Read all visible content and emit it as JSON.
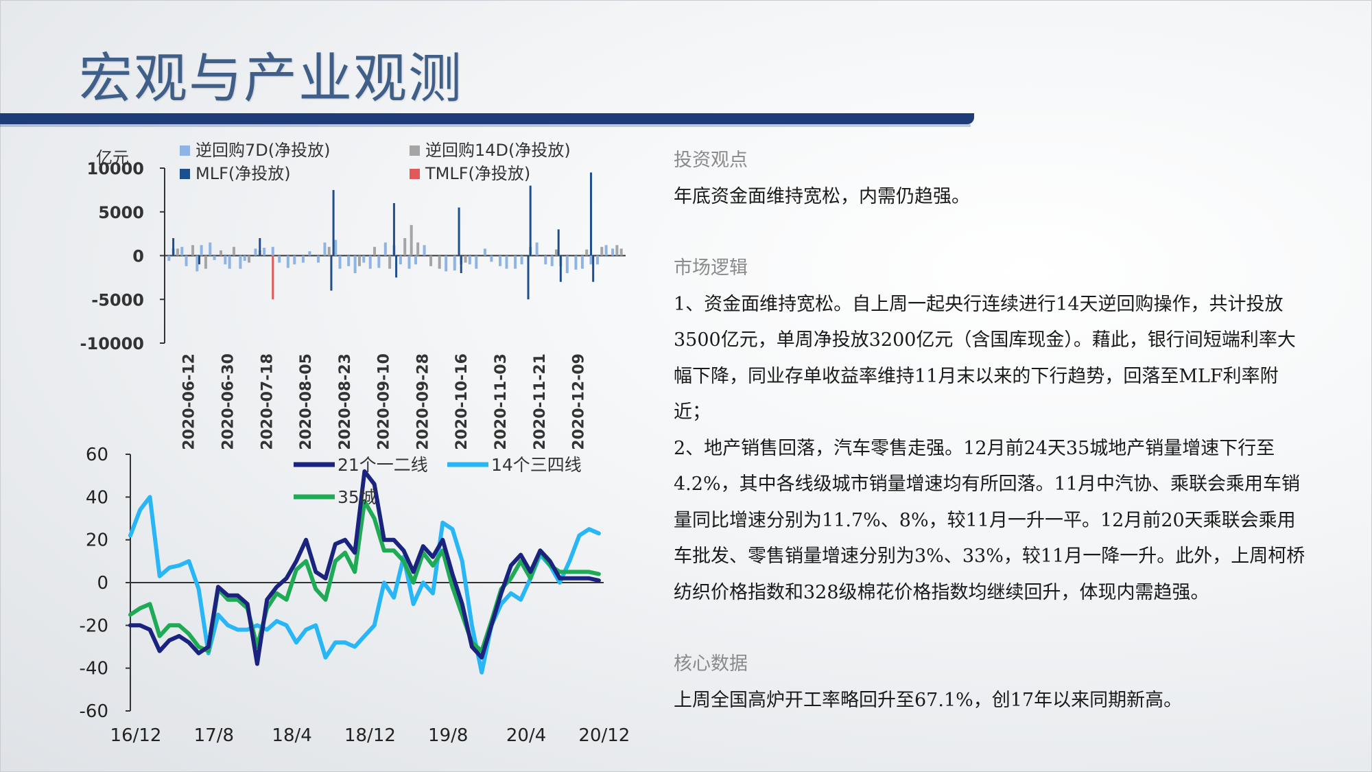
{
  "title": "宏观与产业观测",
  "colors": {
    "title": "#3f5f88",
    "title_bar": "#1e3c78",
    "rr7": "#8fb4e3",
    "rr14": "#a5a5a5",
    "mlf": "#1f4e8c",
    "tmlf": "#e05a5a",
    "c21": "#1a237e",
    "c14": "#29b6f6",
    "c35": "#1faa55"
  },
  "right": {
    "s1_title": "投资观点",
    "s1_text": "年底资金面维持宽松，内需仍趋强。",
    "s2_title": "市场逻辑",
    "s2_p1": "1、资金面维持宽松。自上周一起央行连续进行14天逆回购操作，共计投放3500亿元，单周净投放3200亿元（含国库现金）。藉此，银行间短端利率大幅下降，同业存单收益率维持11月末以来的下行趋势，回落至MLF利率附近；",
    "s2_p2": "2、地产销售回落，汽车零售走强。12月前24天35城地产销量增速下行至4.2%，其中各线级城市销量增速均有所回落。11月中汽协、乘联会乘用车销量同比增速分别为11.7%、8%，较11月一升一平。12月前20天乘联会乘用车批发、零售销量增速分别为3%、33%，较11月一降一升。此外，上周柯桥纺织价格指数和328级棉花价格指数均继续回升，体现内需趋强。",
    "s3_title": "核心数据",
    "s3_text": "上周全国高炉开工率略回升至67.1%，创17年以来同期新高。"
  },
  "chart_data": [
    {
      "type": "bar",
      "ylabel": "亿元",
      "ylim": [
        -10000,
        10000
      ],
      "yticks": [
        10000,
        5000,
        0,
        -5000,
        -10000
      ],
      "x_start": "2020-06-01",
      "x_end": "2020-12-31",
      "xtick_labels": [
        "2020-06-12",
        "2020-06-30",
        "2020-07-18",
        "2020-08-05",
        "2020-08-23",
        "2020-09-10",
        "2020-09-28",
        "2020-10-16",
        "2020-11-03",
        "2020-11-21",
        "2020-12-09"
      ],
      "legend": [
        "逆回购7D(净投放)",
        "逆回购14D(净投放)",
        "MLF(净投放)",
        "TMLF(净投放)"
      ],
      "series": [
        {
          "name": "逆回购7D(净投放)",
          "x": [
            "2020-06-03",
            "2020-06-05",
            "2020-06-09",
            "2020-06-11",
            "2020-06-16",
            "2020-06-18",
            "2020-06-22",
            "2020-06-24",
            "2020-06-29",
            "2020-07-01",
            "2020-07-06",
            "2020-07-08",
            "2020-07-13",
            "2020-07-17",
            "2020-07-21",
            "2020-07-24",
            "2020-07-28",
            "2020-07-31",
            "2020-08-04",
            "2020-08-07",
            "2020-08-11",
            "2020-08-14",
            "2020-08-19",
            "2020-08-21",
            "2020-08-25",
            "2020-08-28",
            "2020-09-01",
            "2020-09-04",
            "2020-09-08",
            "2020-09-11",
            "2020-09-15",
            "2020-09-18",
            "2020-09-22",
            "2020-09-25",
            "2020-09-29",
            "2020-10-09",
            "2020-10-13",
            "2020-10-16",
            "2020-10-20",
            "2020-10-23",
            "2020-10-27",
            "2020-10-30",
            "2020-11-03",
            "2020-11-06",
            "2020-11-10",
            "2020-11-13",
            "2020-11-17",
            "2020-11-20",
            "2020-11-24",
            "2020-11-27",
            "2020-12-01",
            "2020-12-04",
            "2020-12-08",
            "2020-12-11",
            "2020-12-15",
            "2020-12-18",
            "2020-12-22",
            "2020-12-25"
          ],
          "values": [
            -600,
            800,
            1000,
            -1200,
            -1800,
            1200,
            1500,
            -500,
            -1000,
            -1500,
            -1500,
            -600,
            800,
            900,
            1000,
            -800,
            -1400,
            -1000,
            -800,
            500,
            -800,
            1500,
            1800,
            -1500,
            -1200,
            -2000,
            -800,
            -1500,
            -1400,
            1500,
            1200,
            -1000,
            -1500,
            -1000,
            1200,
            -1800,
            -1700,
            -1000,
            -1000,
            -1500,
            800,
            -700,
            -1200,
            -1500,
            -1500,
            -1000,
            1000,
            1500,
            -1000,
            -1200,
            -1200,
            -2000,
            -1600,
            -1500,
            -1000,
            -1000,
            1200,
            800
          ]
        },
        {
          "name": "逆回购14D(净投放)",
          "x": [
            "2020-06-07",
            "2020-06-14",
            "2020-06-20",
            "2020-06-27",
            "2020-07-03",
            "2020-07-10",
            "2020-07-15",
            "2020-08-16",
            "2020-08-30",
            "2020-09-06",
            "2020-09-13",
            "2020-09-20",
            "2020-09-23",
            "2020-09-26",
            "2020-10-02",
            "2020-10-06",
            "2020-10-18",
            "2020-11-29",
            "2020-12-13",
            "2020-12-20",
            "2020-12-27",
            "2020-12-29"
          ],
          "values": [
            800,
            1200,
            -1500,
            600,
            1000,
            -800,
            600,
            1000,
            -1200,
            1000,
            -1500,
            2000,
            3500,
            1500,
            -1200,
            -1500,
            -800,
            700,
            700,
            1000,
            1200,
            800
          ]
        },
        {
          "name": "MLF(净投放)",
          "x": [
            "2020-06-05",
            "2020-06-17",
            "2020-07-15",
            "2020-08-17",
            "2020-08-18",
            "2020-09-15",
            "2020-09-16",
            "2020-10-15",
            "2020-10-16",
            "2020-11-16",
            "2020-11-17",
            "2020-11-30",
            "2020-12-01",
            "2020-12-15",
            "2020-12-16"
          ],
          "values": [
            2000,
            -1000,
            2000,
            -4000,
            7500,
            6000,
            -2500,
            5500,
            -2000,
            -5000,
            8000,
            3000,
            -3000,
            9500,
            -3000
          ]
        },
        {
          "name": "TMLF(净投放)",
          "x": [
            "2020-07-21"
          ],
          "values": [
            -5000
          ]
        }
      ]
    },
    {
      "type": "line",
      "ylim": [
        -60,
        60
      ],
      "yticks": [
        60,
        40,
        20,
        0,
        -20,
        -40,
        -60
      ],
      "x_start": 0,
      "x_end": 48.5,
      "xtick_labels": [
        "16/12",
        "17/8",
        "18/4",
        "18/12",
        "19/8",
        "20/4",
        "20/12"
      ],
      "xtick_positions": [
        0,
        8,
        16,
        24,
        32,
        40,
        48
      ],
      "legend": [
        "21个一二线",
        "14个三四线",
        "35城"
      ],
      "series": [
        {
          "name": "21个一二线",
          "x": [
            0,
            1,
            2,
            3,
            4,
            5,
            6,
            7,
            8,
            9,
            10,
            11,
            12,
            13,
            14,
            15,
            16,
            17,
            18,
            19,
            20,
            21,
            22,
            23,
            24,
            25,
            26,
            27,
            28,
            29,
            30,
            31,
            32,
            33,
            34,
            35,
            36,
            37,
            38,
            39,
            40,
            41,
            42,
            43,
            44,
            45,
            46,
            47,
            48
          ],
          "values": [
            -20,
            -20,
            -22,
            -32,
            -27,
            -25,
            -28,
            -33,
            -30,
            -2,
            -6,
            -6,
            -10,
            -38,
            -8,
            -2,
            2,
            10,
            20,
            5,
            2,
            18,
            20,
            14,
            52,
            46,
            20,
            20,
            15,
            5,
            17,
            12,
            20,
            4,
            -10,
            -30,
            -35,
            -20,
            -5,
            8,
            13,
            5,
            15,
            10,
            2,
            2,
            2,
            2,
            1
          ]
        },
        {
          "name": "14个三四线",
          "x": [
            0,
            1,
            2,
            3,
            4,
            5,
            6,
            7,
            8,
            9,
            10,
            11,
            12,
            13,
            14,
            15,
            16,
            17,
            18,
            19,
            20,
            21,
            22,
            23,
            24,
            25,
            26,
            27,
            28,
            29,
            30,
            31,
            32,
            33,
            34,
            35,
            36,
            37,
            38,
            39,
            40,
            41,
            42,
            43,
            44,
            45,
            46,
            47,
            48
          ],
          "values": [
            22,
            34,
            40,
            3,
            7,
            8,
            10,
            -3,
            -33,
            -15,
            -20,
            -22,
            -22,
            -20,
            -22,
            -18,
            -20,
            -28,
            -22,
            -20,
            -35,
            -28,
            -28,
            -30,
            -25,
            -20,
            0,
            -7,
            12,
            -10,
            0,
            -5,
            28,
            25,
            10,
            -20,
            -42,
            -20,
            -10,
            -5,
            -8,
            2,
            13,
            8,
            0,
            10,
            22,
            25,
            23
          ]
        },
        {
          "name": "35城",
          "x": [
            0,
            1,
            2,
            3,
            4,
            5,
            6,
            7,
            8,
            9,
            10,
            11,
            12,
            13,
            14,
            15,
            16,
            17,
            18,
            19,
            20,
            21,
            22,
            23,
            24,
            25,
            26,
            27,
            28,
            29,
            30,
            31,
            32,
            33,
            34,
            35,
            36,
            37,
            38,
            39,
            40,
            41,
            42,
            43,
            44,
            45,
            46,
            47,
            48
          ],
          "values": [
            -15,
            -12,
            -10,
            -25,
            -20,
            -20,
            -24,
            -30,
            -32,
            -3,
            -8,
            -8,
            -12,
            -30,
            -12,
            -5,
            -8,
            6,
            10,
            -3,
            -8,
            10,
            14,
            5,
            38,
            30,
            15,
            15,
            10,
            0,
            14,
            8,
            15,
            -2,
            -15,
            -28,
            -32,
            -18,
            -3,
            2,
            10,
            2,
            15,
            8,
            5,
            5,
            5,
            5,
            4
          ]
        }
      ]
    }
  ]
}
